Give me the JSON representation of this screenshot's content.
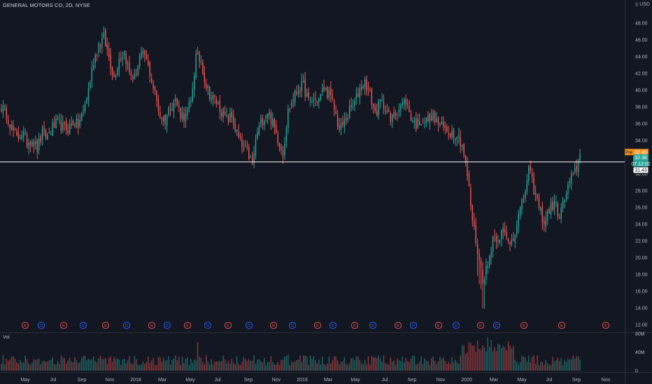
{
  "header": {
    "symbol_title": "GENERAL MOTORS CO, 2D, NYSE",
    "currency": "USD",
    "currency_symbol": "$"
  },
  "price_axis": {
    "ticks": [
      "48.00",
      "46.00",
      "44.00",
      "42.00",
      "40.00",
      "38.00",
      "36.00",
      "34.00",
      "30.00",
      "28.00",
      "26.00",
      "24.00",
      "22.00",
      "20.00",
      "18.00",
      "16.00",
      "14.00",
      "12.00"
    ],
    "labels": [
      {
        "text": "Pre",
        "value": "32.40",
        "color": "#f7931a"
      },
      {
        "text": "",
        "value": "32.38",
        "color": "#26a69a"
      },
      {
        "text": "",
        "value": "07:12:02",
        "color": "#26a69a"
      },
      {
        "text": "",
        "value": "31.43",
        "color": "#ffffff"
      }
    ]
  },
  "volume_axis": {
    "label": "Vol",
    "ticks": [
      "80M",
      "40M",
      "0"
    ]
  },
  "time_axis": [
    "May",
    "Jul",
    "Sep",
    "Nov",
    "2018",
    "Mar",
    "May",
    "Jul",
    "Sep",
    "Nov",
    "2019",
    "Mar",
    "May",
    "Jul",
    "Sep",
    "Nov",
    "2020",
    "Mar",
    "May",
    "Jul",
    "Sep",
    "Nov"
  ],
  "events": [
    "E",
    "D",
    "E",
    "D",
    "E",
    "D",
    "E",
    "D",
    "E",
    "D",
    "E",
    "D",
    "E",
    "D",
    "E",
    "D",
    "E",
    "D",
    "E",
    "D",
    "E",
    "D",
    "E",
    "D",
    "E",
    "E"
  ],
  "colors": {
    "up": "#26a69a",
    "down": "#ef5350",
    "background": "#131722",
    "reference_line": "#ffffff",
    "earnings": "#ef5350",
    "dividend": "#2962ff"
  },
  "chart_data": {
    "type": "candlestick",
    "title": "GENERAL MOTORS CO, 2D, NYSE",
    "ylabel": "USD",
    "ylim": [
      12,
      49
    ],
    "volume_ylim": [
      0,
      80
    ],
    "volume_unit": "M",
    "reference_price": 31.43,
    "close_anchors": [
      [
        0,
        38.0
      ],
      [
        3,
        37.2
      ],
      [
        6,
        35.5
      ],
      [
        9,
        34.2
      ],
      [
        12,
        35.0
      ],
      [
        15,
        33.8
      ],
      [
        18,
        34.2
      ],
      [
        21,
        33.0
      ],
      [
        24,
        34.8
      ],
      [
        27,
        34.5
      ],
      [
        30,
        35.6
      ],
      [
        33,
        36.0
      ],
      [
        36,
        35.5
      ],
      [
        39,
        35.4
      ],
      [
        42,
        36.2
      ],
      [
        45,
        35.8
      ],
      [
        48,
        37.5
      ],
      [
        51,
        40.0
      ],
      [
        54,
        43.5
      ],
      [
        57,
        45.5
      ],
      [
        60,
        46.2
      ],
      [
        63,
        44.0
      ],
      [
        66,
        41.5
      ],
      [
        69,
        43.8
      ],
      [
        72,
        44.5
      ],
      [
        75,
        42.0
      ],
      [
        78,
        41.5
      ],
      [
        81,
        43.8
      ],
      [
        84,
        44.2
      ],
      [
        87,
        42.0
      ],
      [
        90,
        39.5
      ],
      [
        93,
        37.0
      ],
      [
        96,
        36.5
      ],
      [
        99,
        38.2
      ],
      [
        102,
        38.8
      ],
      [
        105,
        37.2
      ],
      [
        108,
        36.8
      ],
      [
        111,
        38.5
      ],
      [
        114,
        44.0
      ],
      [
        117,
        43.5
      ],
      [
        120,
        40.5
      ],
      [
        123,
        39.2
      ],
      [
        126,
        38.6
      ],
      [
        129,
        37.5
      ],
      [
        132,
        36.5
      ],
      [
        135,
        36.8
      ],
      [
        138,
        34.8
      ],
      [
        141,
        33.2
      ],
      [
        144,
        32.6
      ],
      [
        147,
        31.2
      ],
      [
        150,
        35.0
      ],
      [
        153,
        36.5
      ],
      [
        156,
        37.5
      ],
      [
        159,
        36.0
      ],
      [
        162,
        34.2
      ],
      [
        165,
        32.5
      ],
      [
        168,
        37.5
      ],
      [
        171,
        39.0
      ],
      [
        174,
        40.2
      ],
      [
        177,
        40.5
      ],
      [
        180,
        38.6
      ],
      [
        183,
        38.8
      ],
      [
        186,
        38.9
      ],
      [
        189,
        40.2
      ],
      [
        192,
        39.5
      ],
      [
        195,
        37.8
      ],
      [
        198,
        35.2
      ],
      [
        201,
        36.2
      ],
      [
        204,
        37.5
      ],
      [
        207,
        38.5
      ],
      [
        210,
        40.2
      ],
      [
        213,
        41.0
      ],
      [
        216,
        39.5
      ],
      [
        219,
        37.2
      ],
      [
        222,
        38.5
      ],
      [
        225,
        38.2
      ],
      [
        228,
        36.2
      ],
      [
        231,
        37.5
      ],
      [
        234,
        38.2
      ],
      [
        237,
        38.7
      ],
      [
        240,
        36.8
      ],
      [
        243,
        35.8
      ],
      [
        246,
        36.5
      ],
      [
        249,
        36.2
      ],
      [
        252,
        37.0
      ],
      [
        255,
        36.2
      ],
      [
        258,
        35.6
      ],
      [
        261,
        35.2
      ],
      [
        264,
        35.0
      ],
      [
        267,
        34.8
      ],
      [
        270,
        33.5
      ],
      [
        273,
        29.8
      ],
      [
        276,
        24.5
      ],
      [
        279,
        20.8
      ],
      [
        282,
        17.5
      ],
      [
        285,
        19.0
      ],
      [
        288,
        22.5
      ],
      [
        291,
        22.5
      ],
      [
        294,
        23.2
      ],
      [
        297,
        21.8
      ],
      [
        300,
        22.5
      ],
      [
        303,
        25.0
      ],
      [
        306,
        27.0
      ],
      [
        309,
        30.5
      ],
      [
        312,
        28.2
      ],
      [
        315,
        26.0
      ],
      [
        318,
        24.2
      ],
      [
        321,
        25.8
      ],
      [
        324,
        26.5
      ],
      [
        327,
        25.0
      ],
      [
        330,
        27.0
      ],
      [
        333,
        29.0
      ],
      [
        336,
        30.2
      ],
      [
        339,
        32.4
      ]
    ],
    "volume_range_m": [
      8,
      72
    ],
    "x_axis": [
      "May",
      "Jul",
      "Sep",
      "Nov",
      "2018",
      "Mar",
      "May",
      "Jul",
      "Sep",
      "Nov",
      "2019",
      "Mar",
      "May",
      "Jul",
      "Sep",
      "Nov",
      "2020",
      "Mar",
      "May",
      "Jul",
      "Sep",
      "Nov"
    ]
  }
}
